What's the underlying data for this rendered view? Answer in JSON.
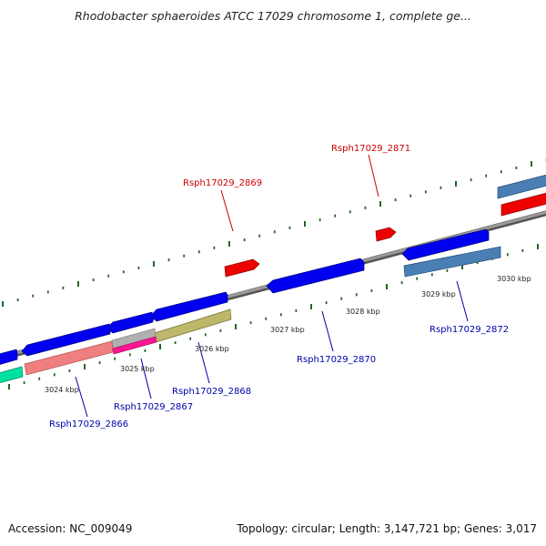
{
  "header": {
    "title": "Rhodobacter sphaeroides ATCC 17029 chromosome 1, complete ge..."
  },
  "footer": {
    "accession": "Accession: NC_009049",
    "summary": "Topology: circular; Length: 3,147,721 bp; Genes: 3,017"
  },
  "colors": {
    "forward_label": "#cc0000",
    "reverse_label": "#0000aa",
    "backbone": "#888888",
    "tick": "#226622",
    "gene_blue": "#0000ee",
    "gene_red": "#ee0000",
    "gene_steelblue": "#4a7fb5",
    "gene_salmon": "#f08080",
    "gene_khaki": "#bdb76b",
    "gene_magenta": "#ff1493",
    "gene_teal": "#00e0a0"
  },
  "position_markers": [
    "3024 kbp",
    "3025 kbp",
    "3026 kbp",
    "3027 kbp",
    "3028 kbp",
    "3029 kbp",
    "3030 kbp"
  ],
  "gene_labels": {
    "g2866": "Rsph17029_2866",
    "g2867": "Rsph17029_2867",
    "g2868": "Rsph17029_2868",
    "g2869": "Rsph17029_2869",
    "g2870": "Rsph17029_2870",
    "g2871": "Rsph17029_2871",
    "g2872": "Rsph17029_2872"
  }
}
